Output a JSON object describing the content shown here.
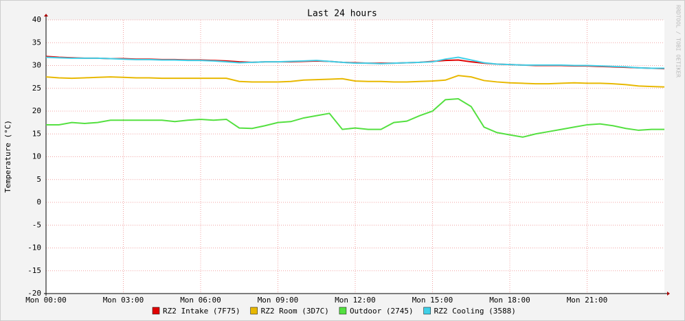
{
  "chart_data": {
    "type": "line",
    "title": "Last 24 hours",
    "y_label": "Temperature (°C)",
    "watermark": "RRDTOOL / TOBI OETIKER",
    "x": [
      0,
      0.5,
      1,
      1.5,
      2,
      2.5,
      3,
      3.5,
      4,
      4.5,
      5,
      5.5,
      6,
      6.5,
      7,
      7.5,
      8,
      8.5,
      9,
      9.5,
      10,
      10.5,
      11,
      11.5,
      12,
      12.5,
      13,
      13.5,
      14,
      14.5,
      15,
      15.5,
      16,
      16.5,
      17,
      17.5,
      18,
      18.5,
      19,
      19.5,
      20,
      20.5,
      21,
      21.5,
      22,
      22.5,
      23,
      23.5,
      24
    ],
    "xlim": [
      0,
      24
    ],
    "xticks": [
      {
        "value": 0,
        "label": "Mon 00:00"
      },
      {
        "value": 3,
        "label": "Mon 03:00"
      },
      {
        "value": 6,
        "label": "Mon 06:00"
      },
      {
        "value": 9,
        "label": "Mon 09:00"
      },
      {
        "value": 12,
        "label": "Mon 12:00"
      },
      {
        "value": 15,
        "label": "Mon 15:00"
      },
      {
        "value": 18,
        "label": "Mon 18:00"
      },
      {
        "value": 21,
        "label": "Mon 21:00"
      }
    ],
    "ylim": [
      -20,
      40
    ],
    "yticks": [
      40,
      35,
      30,
      25,
      20,
      15,
      10,
      5,
      0,
      -5,
      -10,
      -15,
      -20
    ],
    "grid": true,
    "series": [
      {
        "name": "RZ2 Intake (7F75)",
        "color": "#e00000",
        "values": [
          32,
          31.8,
          31.7,
          31.6,
          31.6,
          31.5,
          31.5,
          31.4,
          31.4,
          31.3,
          31.3,
          31.2,
          31.2,
          31.1,
          31,
          30.8,
          30.7,
          30.8,
          30.8,
          30.8,
          30.9,
          31,
          30.9,
          30.7,
          30.6,
          30.5,
          30.5,
          30.5,
          30.6,
          30.7,
          30.9,
          31.1,
          31.2,
          30.8,
          30.5,
          30.3,
          30.2,
          30.1,
          30,
          30,
          30,
          29.9,
          29.9,
          29.8,
          29.7,
          29.6,
          29.5,
          29.4,
          29.3
        ]
      },
      {
        "name": "RZ2 Room (3D7C)",
        "color": "#e8b800",
        "values": [
          27.5,
          27.3,
          27.2,
          27.3,
          27.4,
          27.5,
          27.4,
          27.3,
          27.3,
          27.2,
          27.2,
          27.2,
          27.2,
          27.2,
          27.2,
          26.5,
          26.4,
          26.4,
          26.4,
          26.5,
          26.8,
          26.9,
          27,
          27.1,
          26.6,
          26.5,
          26.5,
          26.4,
          26.4,
          26.5,
          26.6,
          26.8,
          27.8,
          27.5,
          26.7,
          26.4,
          26.2,
          26.1,
          26,
          26,
          26.1,
          26.2,
          26.1,
          26.1,
          26,
          25.8,
          25.5,
          25.4,
          25.3
        ]
      },
      {
        "name": "Outdoor (2745)",
        "color": "#54e040",
        "values": [
          17,
          17,
          17.5,
          17.3,
          17.5,
          18,
          18,
          18,
          18,
          18,
          17.7,
          18,
          18.2,
          18,
          18.2,
          16.3,
          16.2,
          16.8,
          17.5,
          17.7,
          18.5,
          19,
          19.5,
          16,
          16.3,
          16,
          16,
          17.5,
          17.8,
          19,
          20,
          22.5,
          22.7,
          21,
          16.5,
          15.3,
          14.8,
          14.3,
          15,
          15.5,
          16,
          16.5,
          17,
          17.2,
          16.8,
          16.2,
          15.8,
          16,
          16
        ]
      },
      {
        "name": "RZ2 Cooling (3588)",
        "color": "#40d0e8",
        "values": [
          31.8,
          31.7,
          31.6,
          31.6,
          31.6,
          31.5,
          31.4,
          31.3,
          31.3,
          31.2,
          31.2,
          31.1,
          31.1,
          31,
          30.8,
          30.6,
          30.7,
          30.8,
          30.8,
          30.9,
          31,
          31.1,
          30.9,
          30.7,
          30.5,
          30.5,
          30.4,
          30.5,
          30.6,
          30.7,
          30.8,
          31.4,
          31.8,
          31.2,
          30.6,
          30.3,
          30.2,
          30.1,
          30.1,
          30.1,
          30.1,
          30,
          30,
          29.9,
          29.8,
          29.7,
          29.5,
          29.4,
          29.4
        ]
      }
    ]
  }
}
